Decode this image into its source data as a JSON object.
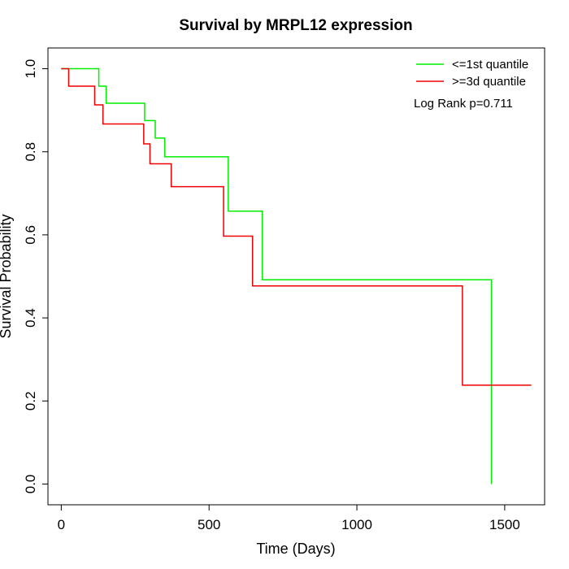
{
  "chart_data": {
    "type": "line",
    "title": "Survival by MRPL12 expression",
    "xlabel": "Time (Days)",
    "ylabel": "Survival Probability",
    "xlim": [
      -45,
      1635
    ],
    "ylim": [
      -0.05,
      1.05
    ],
    "x_ticks": [
      0,
      500,
      1000,
      1500
    ],
    "x_tick_labels": [
      "0",
      "500",
      "1000",
      "1500"
    ],
    "y_ticks": [
      0.0,
      0.2,
      0.4,
      0.6,
      0.8,
      1.0
    ],
    "y_tick_labels": [
      "0.0",
      "0.2",
      "0.4",
      "0.6",
      "0.8",
      "1.0"
    ],
    "grid": false,
    "legend_position": "top-right",
    "annotation": "Log Rank p=0.711",
    "series": [
      {
        "name": "<=1st quantile",
        "color": "#00ee00",
        "step": true,
        "x": [
          0,
          127,
          152,
          282,
          318,
          350,
          565,
          680,
          1455,
          1455
        ],
        "y": [
          1.0,
          0.958,
          0.917,
          0.875,
          0.833,
          0.788,
          0.657,
          0.492,
          0.492,
          0.0
        ]
      },
      {
        "name": ">=3d quantile",
        "color": "#ee0000",
        "step": true,
        "x": [
          0,
          25,
          113,
          141,
          279,
          300,
          372,
          549,
          647,
          1357,
          1590
        ],
        "y": [
          1.0,
          0.958,
          0.913,
          0.867,
          0.819,
          0.771,
          0.716,
          0.597,
          0.477,
          0.238,
          0.238
        ]
      }
    ]
  }
}
